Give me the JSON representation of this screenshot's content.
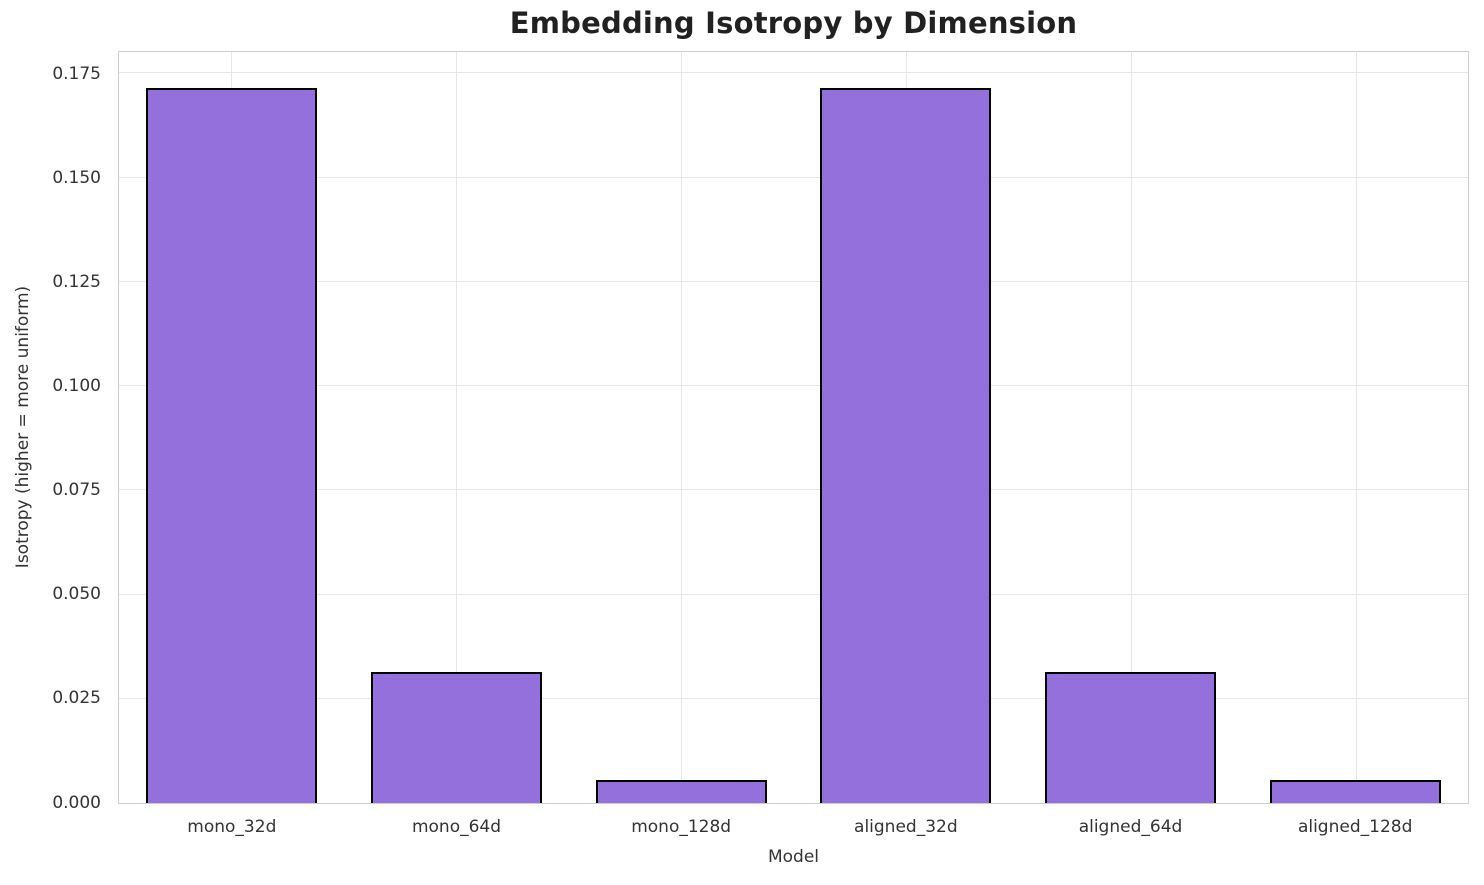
{
  "chart_data": {
    "type": "bar",
    "title": "Embedding Isotropy by Dimension",
    "xlabel": "Model",
    "ylabel": "Isotropy (higher = more uniform)",
    "categories": [
      "mono_32d",
      "mono_64d",
      "mono_128d",
      "aligned_32d",
      "aligned_64d",
      "aligned_128d"
    ],
    "values": [
      0.1715,
      0.0315,
      0.0055,
      0.1715,
      0.0315,
      0.0055
    ],
    "ylim": [
      0,
      0.1801
    ],
    "yticks": [
      0.0,
      0.025,
      0.05,
      0.075,
      0.1,
      0.125,
      0.15,
      0.175
    ],
    "ytick_labels": [
      "0.000",
      "0.025",
      "0.050",
      "0.075",
      "0.100",
      "0.125",
      "0.150",
      "0.175"
    ],
    "grid": true,
    "grid_axes": "both",
    "legend": null,
    "bar_width_fraction": 0.76,
    "colors": {
      "bar_fill": "#9370DB",
      "bar_edge": "#000000",
      "grid": "#e7e7e7",
      "spine": "#cdcdcd",
      "tick_text": "#333333",
      "title_text": "#212121",
      "background": "#ffffff"
    }
  }
}
